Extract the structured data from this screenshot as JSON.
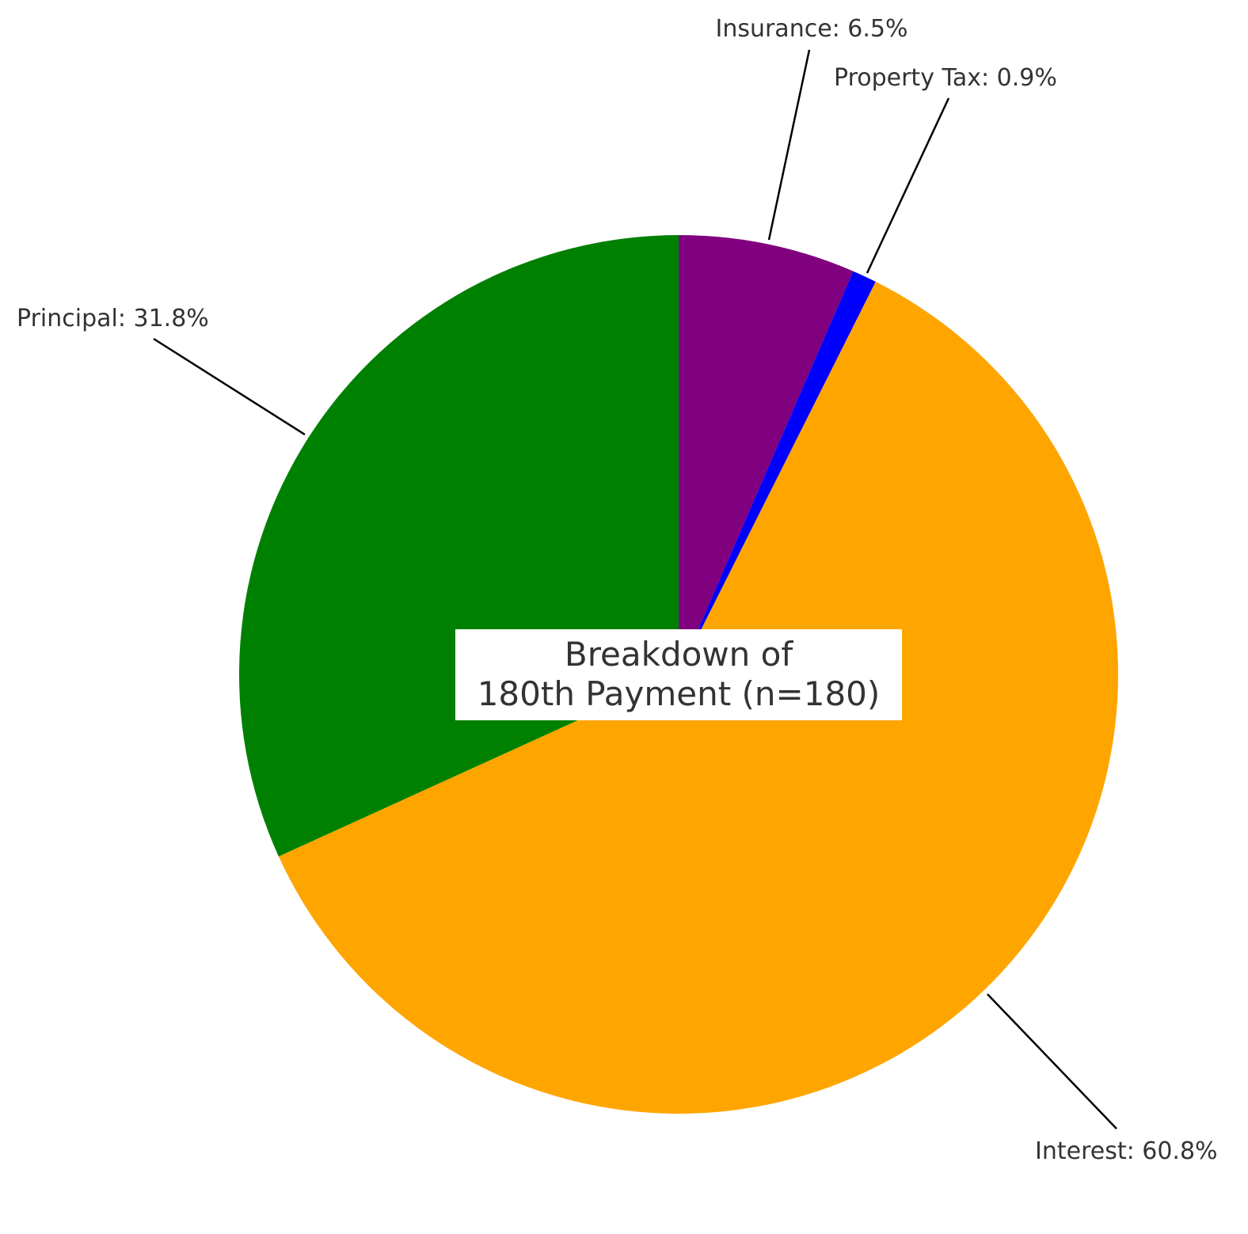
{
  "chart_data": {
    "type": "pie",
    "title_lines": [
      "Breakdown of",
      "180th Payment (n=180)"
    ],
    "start_angle_deg": 90,
    "direction": "clockwise",
    "slices": [
      {
        "name": "Insurance",
        "value": 6.5,
        "label": "Insurance: 6.5%",
        "color": "#800080"
      },
      {
        "name": "Property Tax",
        "value": 0.9,
        "label": "Property Tax: 0.9%",
        "color": "#0000ff"
      },
      {
        "name": "Interest",
        "value": 60.8,
        "label": "Interest: 60.8%",
        "color": "#ffa500"
      },
      {
        "name": "Principal",
        "value": 31.8,
        "label": "Principal: 31.8%",
        "color": "#008000"
      }
    ]
  }
}
